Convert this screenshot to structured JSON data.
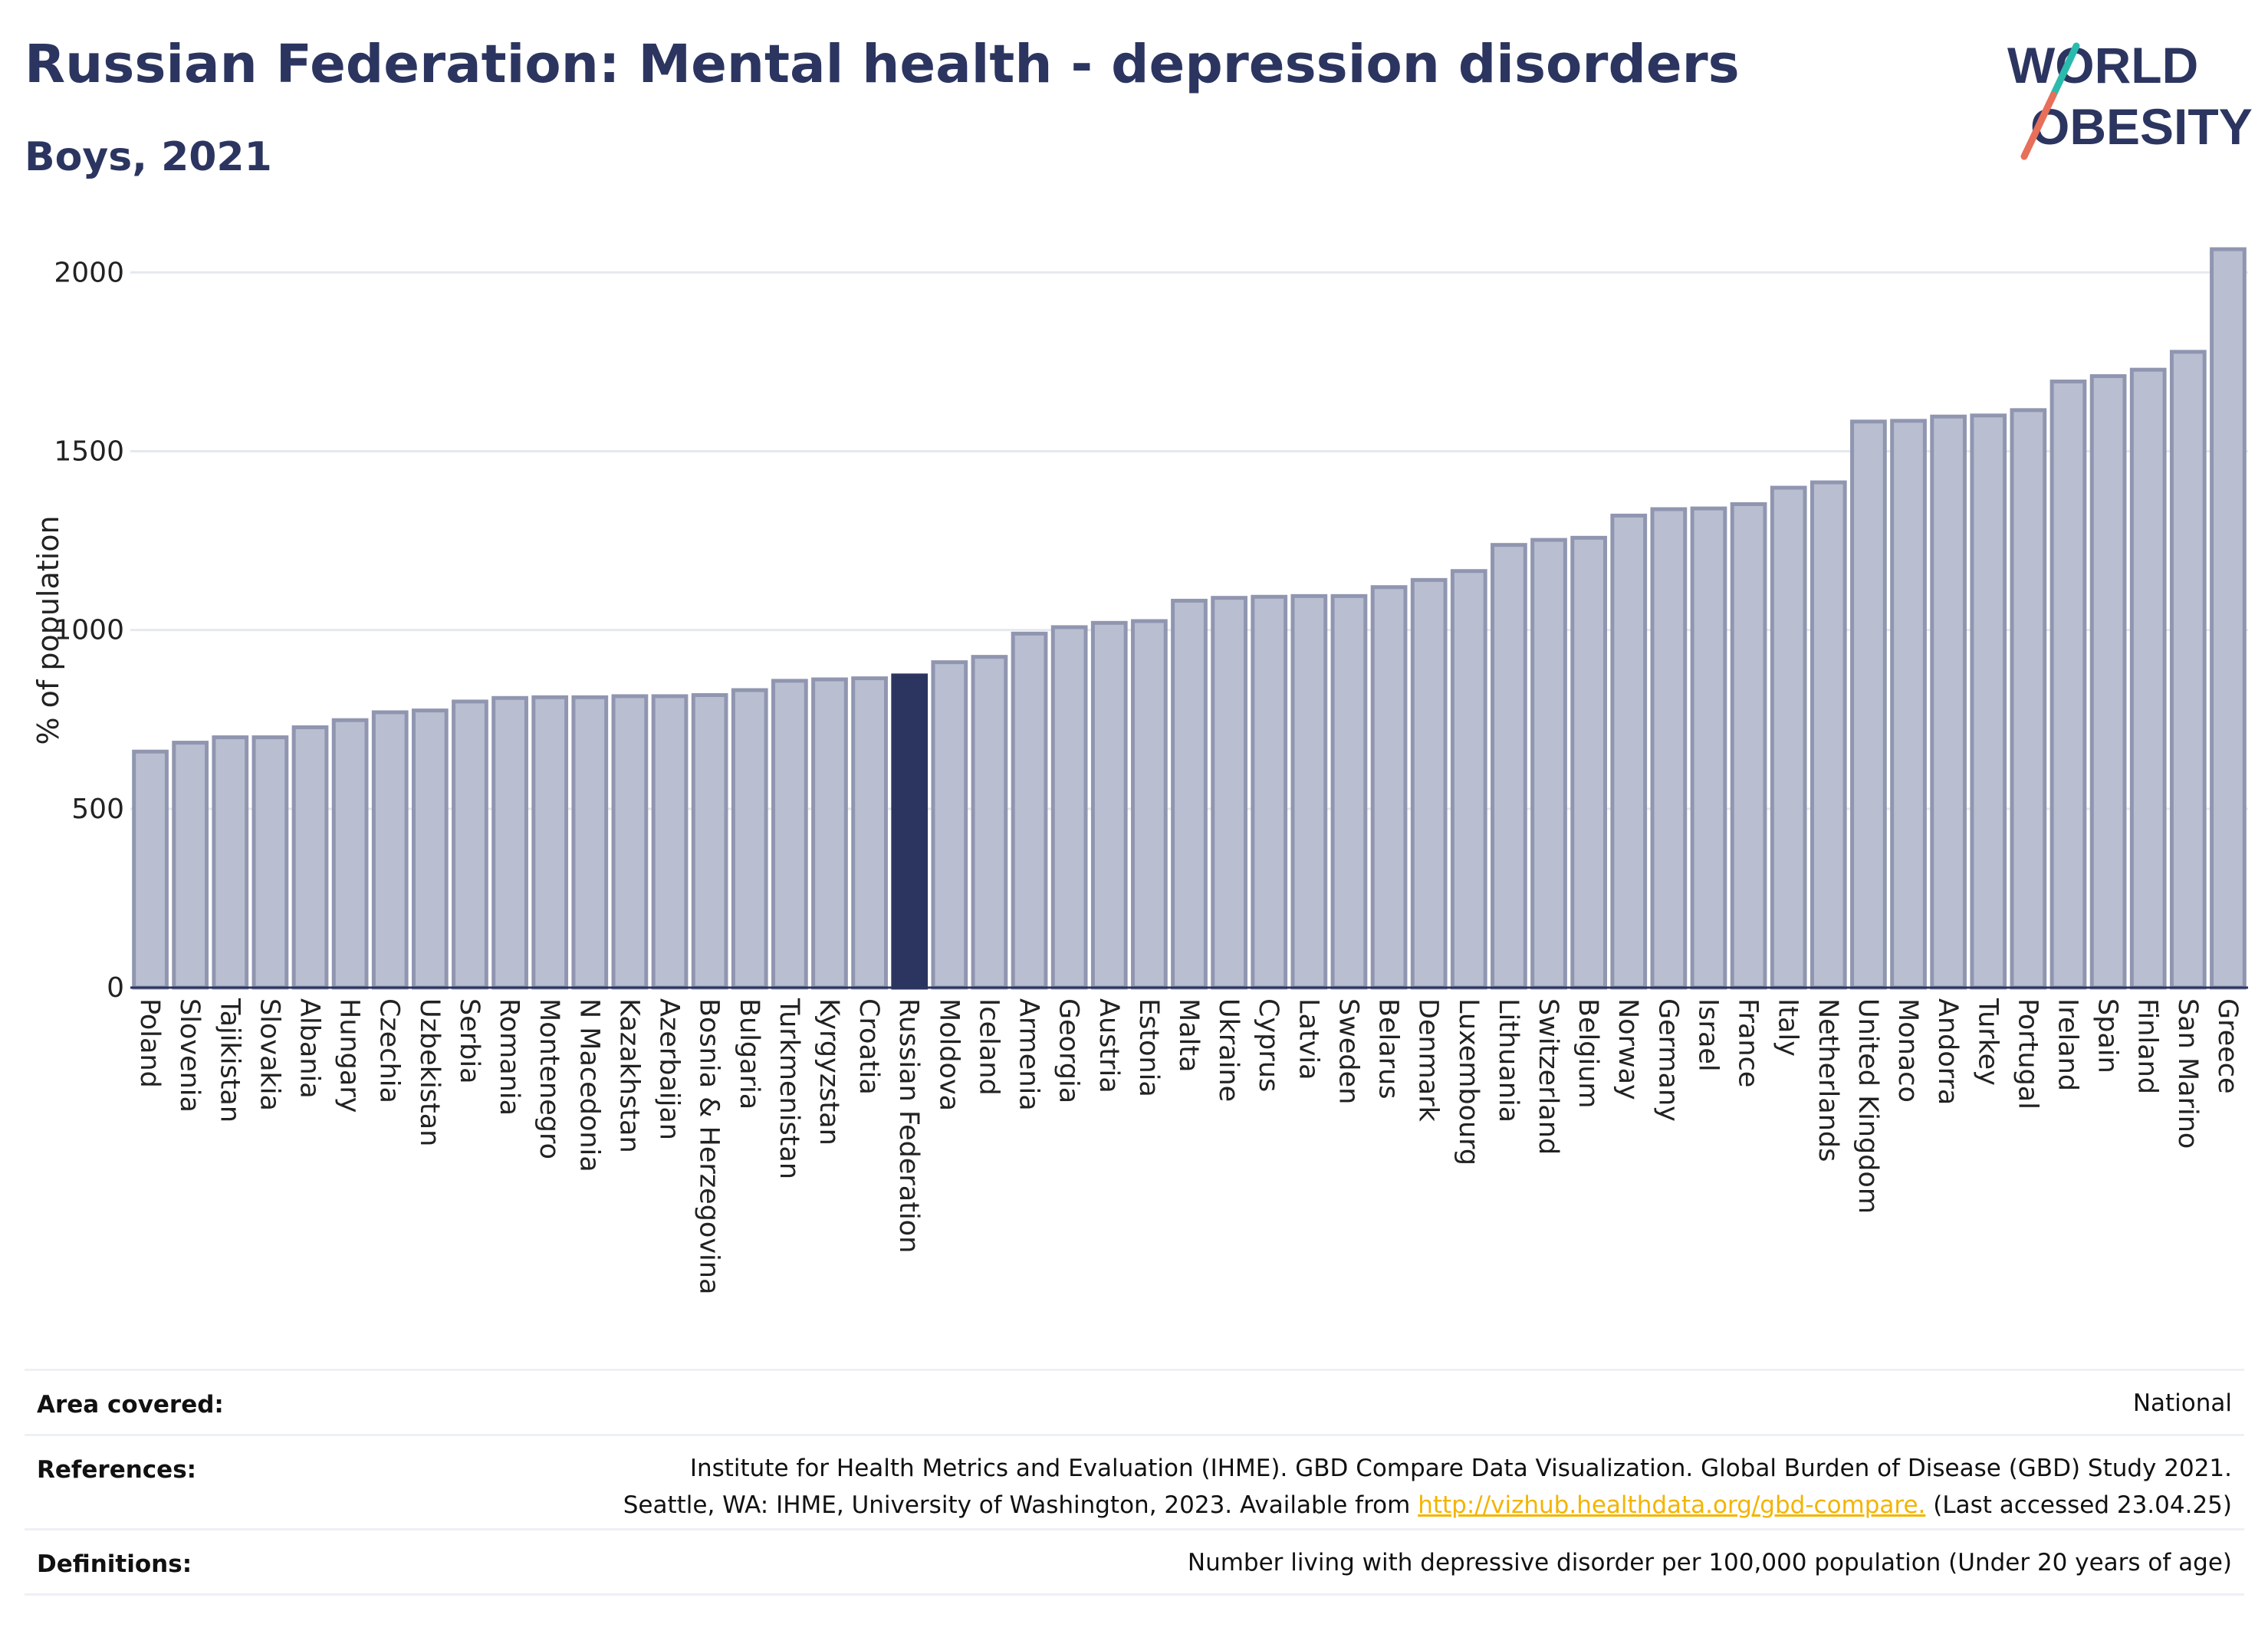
{
  "title": "Russian Federation: Mental health - depression disorders",
  "subtitle": "Boys, 2021",
  "logo": {
    "line1": "WORLD",
    "line2": "OBESITY"
  },
  "colors": {
    "bar": "#b9bfd1",
    "bar_edge": "#9096b0",
    "highlight": "#2b3560",
    "title": "#2b3560",
    "grid": "#e6e8ef",
    "link": "#f3b400"
  },
  "chart_data": {
    "type": "bar",
    "ylabel": "% of population",
    "ylim": [
      0,
      2080
    ],
    "yticks": [
      0,
      500,
      1000,
      1500,
      2000
    ],
    "grid": true,
    "highlight": "Russian Federation",
    "categories": [
      "Poland",
      "Slovenia",
      "Tajikistan",
      "Slovakia",
      "Albania",
      "Hungary",
      "Czechia",
      "Uzbekistan",
      "Serbia",
      "Romania",
      "Montenegro",
      "N Macedonia",
      "Kazakhstan",
      "Azerbaijan",
      "Bosnia & Herzegovina",
      "Bulgaria",
      "Turkmenistan",
      "Kyrgyzstan",
      "Croatia",
      "Russian Federation",
      "Moldova",
      "Iceland",
      "Armenia",
      "Georgia",
      "Austria",
      "Estonia",
      "Malta",
      "Ukraine",
      "Cyprus",
      "Latvia",
      "Sweden",
      "Belarus",
      "Denmark",
      "Luxembourg",
      "Lithuania",
      "Switzerland",
      "Belgium",
      "Norway",
      "Germany",
      "Israel",
      "France",
      "Italy",
      "Netherlands",
      "United Kingdom",
      "Monaco",
      "Andorra",
      "Turkey",
      "Portugal",
      "Ireland",
      "Spain",
      "Finland",
      "San Marino",
      "Greece"
    ],
    "values": [
      660,
      685,
      700,
      700,
      728,
      748,
      770,
      775,
      800,
      810,
      812,
      812,
      815,
      815,
      818,
      832,
      858,
      862,
      865,
      873,
      910,
      925,
      990,
      1008,
      1020,
      1025,
      1082,
      1090,
      1093,
      1095,
      1095,
      1120,
      1140,
      1165,
      1238,
      1252,
      1258,
      1320,
      1338,
      1340,
      1352,
      1398,
      1413,
      1583,
      1585,
      1597,
      1600,
      1615,
      1695,
      1710,
      1728,
      1778,
      2065
    ]
  },
  "footer": {
    "area_label": "Area covered:",
    "area_value": "National",
    "references_label": "References:",
    "references_line1": "Institute for Health Metrics and Evaluation (IHME). GBD Compare Data Visualization. Global Burden of Disease (GBD) Study 2021.",
    "references_line2_pre": "Seattle, WA: IHME, University of Washington, 2023. Available from",
    "references_link": "http://vizhub.healthdata.org/gbd-compare.",
    "references_line2_post": "(Last accessed 23.04.25)",
    "definitions_label": "Definitions:",
    "definitions_value": "Number living with depressive disorder per 100,000 population (Under 20 years of age)"
  }
}
